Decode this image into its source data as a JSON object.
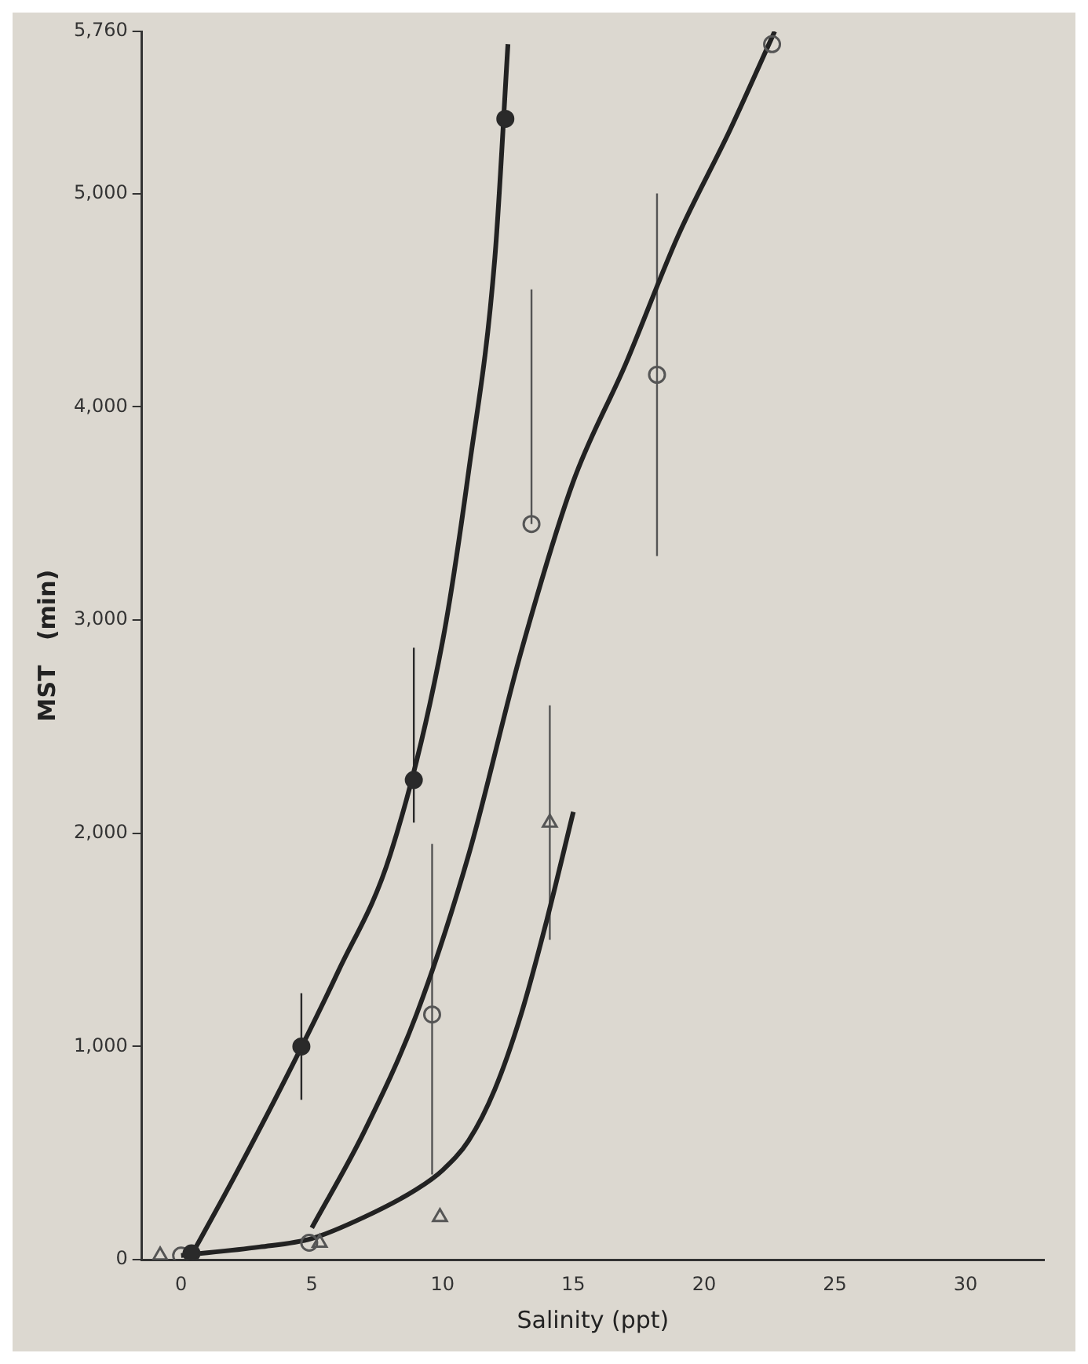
{
  "chart_data": {
    "type": "scatter",
    "xlabel": "Salinity (ppt)",
    "ylabel": "MST   (min)",
    "xlim": [
      -1.5,
      33
    ],
    "xticks": [
      0,
      5,
      10,
      15,
      20,
      25,
      30
    ],
    "ylim": [
      0,
      5760
    ],
    "yticks": [
      {
        "value": 0,
        "label": "0"
      },
      {
        "value": 1000,
        "label": "1,000"
      },
      {
        "value": 2000,
        "label": "2,000"
      },
      {
        "value": 3000,
        "label": "3,000"
      },
      {
        "value": 4000,
        "label": "4,000"
      },
      {
        "value": 5000,
        "label": "5,000"
      },
      {
        "value": 5760,
        "label": "5,760"
      }
    ],
    "grid": false,
    "legend": false,
    "series": [
      {
        "type": "scatter",
        "marker": "circle",
        "color": "#2a2a2a",
        "x": [
          0.4,
          4.6,
          8.9,
          12.4
        ],
        "values": [
          30,
          1000,
          2250,
          5350
        ],
        "errors": [
          null,
          [
            750,
            1250
          ],
          [
            2050,
            2870
          ],
          null
        ]
      },
      {
        "type": "scatter",
        "marker": "circle",
        "color": "#555555",
        "x": [
          0,
          4.9,
          9.6,
          13.4,
          18.2,
          22.6
        ],
        "values": [
          20,
          80,
          1150,
          3450,
          4150,
          5700
        ],
        "errors": [
          null,
          null,
          [
            400,
            1950
          ],
          [
            3450,
            4550
          ],
          [
            3300,
            5000
          ],
          null
        ]
      },
      {
        "type": "scatter",
        "marker": "triangle",
        "color": "#555555",
        "x": [
          -0.8,
          5.3,
          9.9,
          14.1
        ],
        "values": [
          20,
          80,
          200,
          2050
        ],
        "errors": [
          null,
          null,
          null,
          [
            1500,
            2600
          ]
        ]
      },
      {
        "type": "line",
        "marker": "none",
        "color": "#222222",
        "x": [
          0.3,
          2,
          4,
          6,
          8,
          10,
          11,
          12,
          12.5
        ],
        "values": [
          0,
          380,
          850,
          1350,
          1900,
          2900,
          3700,
          4700,
          5700
        ]
      },
      {
        "type": "line",
        "marker": "none",
        "color": "#222222",
        "x": [
          5,
          7,
          9,
          11,
          13,
          15,
          17,
          19,
          21,
          22.7
        ],
        "values": [
          150,
          600,
          1150,
          1900,
          2850,
          3650,
          4200,
          4800,
          5300,
          5760
        ]
      },
      {
        "type": "line",
        "marker": "none",
        "color": "#222222",
        "x": [
          0,
          3,
          5,
          7,
          9,
          10,
          11,
          12,
          13,
          14,
          15
        ],
        "values": [
          20,
          60,
          100,
          200,
          330,
          420,
          560,
          800,
          1150,
          1600,
          2100
        ]
      }
    ]
  }
}
